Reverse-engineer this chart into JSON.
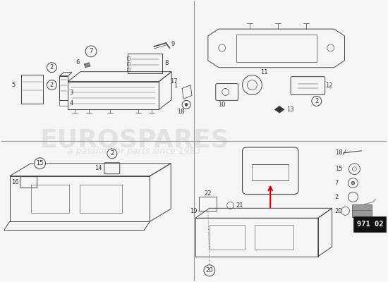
{
  "page_code": "971 02",
  "bg_color": "#f5f5f5",
  "line_color": "#444444",
  "label_color": "#333333",
  "watermark_color_main": "#d0d0d0",
  "watermark_color_sub": "#c8c8c8",
  "red_color": "#cc0000",
  "divider_color": "#999999",
  "black_fill": "#222222",
  "gray_fill": "#888888",
  "light_gray": "#bbbbbb"
}
